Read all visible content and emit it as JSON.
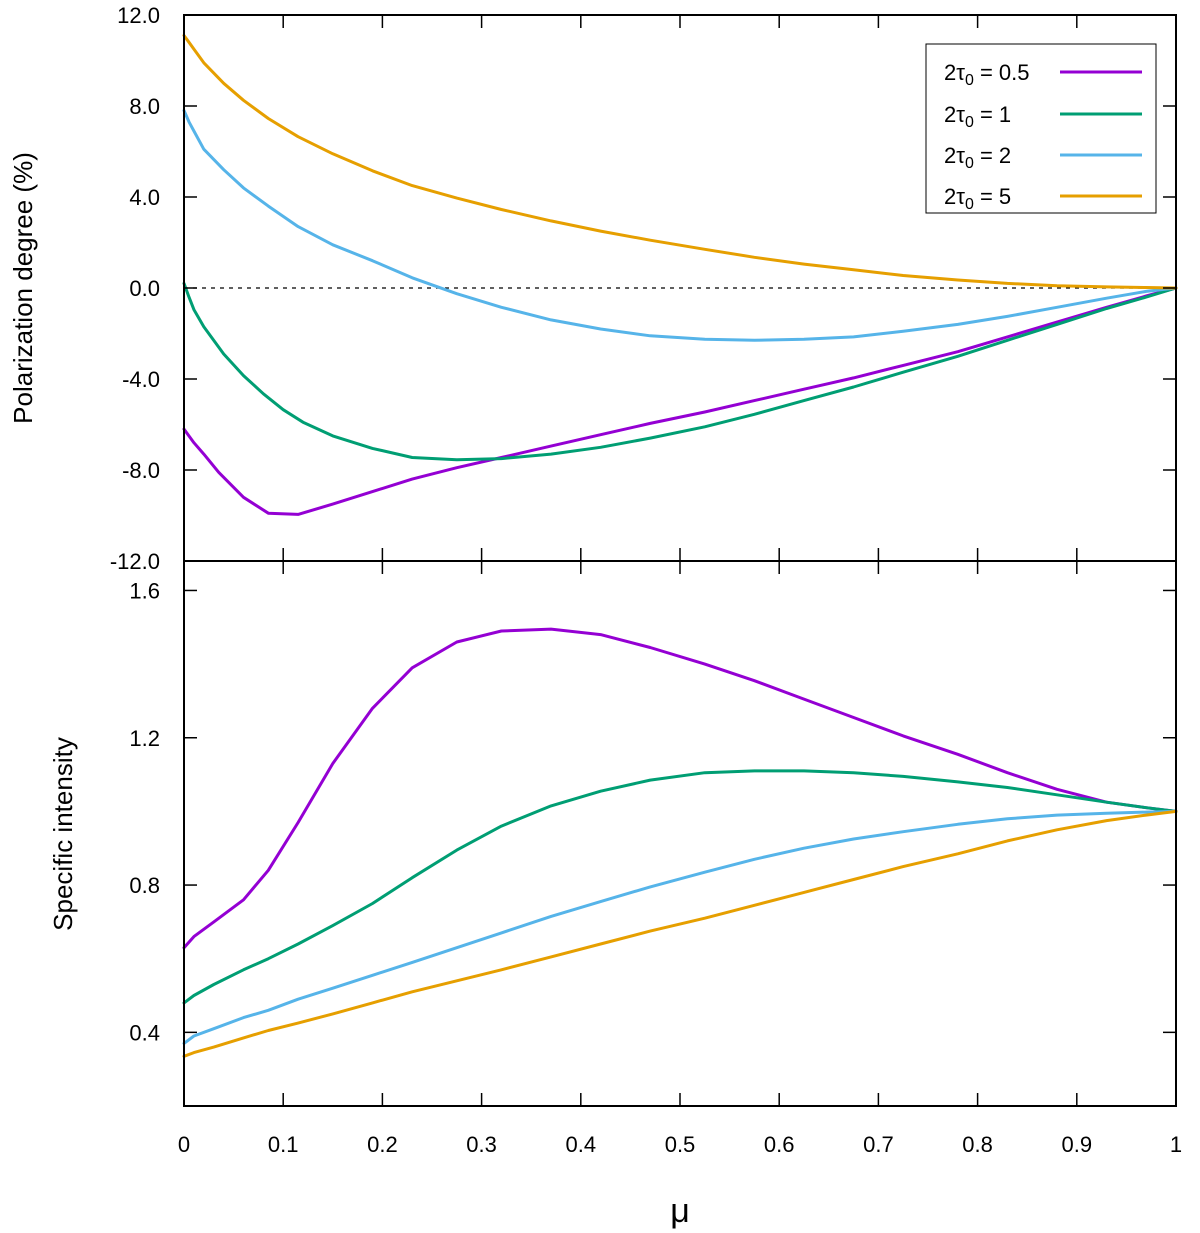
{
  "chart_data": [
    {
      "type": "line",
      "panel": "top",
      "ylabel": "Polarization degree (%)",
      "xlim": [
        0,
        1
      ],
      "ylim": [
        -12,
        12
      ],
      "yticks": [
        -12,
        -8,
        -4,
        0,
        4,
        8,
        12
      ],
      "ytick_labels": [
        "-12.0",
        "-8.0",
        "-4.0",
        "0.0",
        "4.0",
        "8.0",
        "12.0"
      ],
      "zero_line": true,
      "series": [
        {
          "name": "2τ0 = 0.5",
          "color": "#9400d3",
          "x": [
            0,
            0.01,
            0.02,
            0.035,
            0.06,
            0.085,
            0.115,
            0.15,
            0.19,
            0.23,
            0.275,
            0.32,
            0.37,
            0.42,
            0.47,
            0.525,
            0.575,
            0.625,
            0.675,
            0.725,
            0.78,
            0.83,
            0.88,
            0.93,
            0.97,
            1.0
          ],
          "y": [
            -6.2,
            -6.8,
            -7.3,
            -8.1,
            -9.2,
            -9.9,
            -9.95,
            -9.5,
            -8.95,
            -8.4,
            -7.9,
            -7.45,
            -6.95,
            -6.45,
            -5.95,
            -5.45,
            -4.95,
            -4.45,
            -3.95,
            -3.4,
            -2.8,
            -2.15,
            -1.5,
            -0.85,
            -0.35,
            0.0
          ]
        },
        {
          "name": "2τ0 = 1",
          "color": "#009e73",
          "x": [
            0,
            0.005,
            0.01,
            0.02,
            0.04,
            0.06,
            0.08,
            0.1,
            0.12,
            0.15,
            0.19,
            0.23,
            0.275,
            0.32,
            0.37,
            0.42,
            0.47,
            0.525,
            0.575,
            0.625,
            0.675,
            0.725,
            0.78,
            0.83,
            0.88,
            0.93,
            0.97,
            1.0
          ],
          "y": [
            0.2,
            -0.4,
            -0.95,
            -1.7,
            -2.9,
            -3.85,
            -4.65,
            -5.35,
            -5.9,
            -6.5,
            -7.05,
            -7.45,
            -7.55,
            -7.5,
            -7.3,
            -7.0,
            -6.6,
            -6.1,
            -5.55,
            -4.95,
            -4.35,
            -3.7,
            -3.0,
            -2.3,
            -1.6,
            -0.9,
            -0.4,
            0.0
          ]
        },
        {
          "name": "2τ0 = 2",
          "color": "#56b4e9",
          "x": [
            0,
            0.005,
            0.01,
            0.02,
            0.04,
            0.06,
            0.085,
            0.115,
            0.15,
            0.19,
            0.23,
            0.275,
            0.32,
            0.37,
            0.42,
            0.47,
            0.525,
            0.575,
            0.625,
            0.675,
            0.725,
            0.78,
            0.83,
            0.88,
            0.93,
            0.97,
            1.0
          ],
          "y": [
            7.8,
            7.3,
            6.9,
            6.1,
            5.2,
            4.4,
            3.6,
            2.7,
            1.9,
            1.2,
            0.45,
            -0.25,
            -0.85,
            -1.4,
            -1.8,
            -2.1,
            -2.25,
            -2.3,
            -2.25,
            -2.15,
            -1.9,
            -1.6,
            -1.25,
            -0.85,
            -0.45,
            -0.15,
            0.0
          ]
        },
        {
          "name": "2τ0 = 5",
          "color": "#e69f00",
          "x": [
            0,
            0.005,
            0.01,
            0.02,
            0.04,
            0.06,
            0.085,
            0.115,
            0.15,
            0.19,
            0.23,
            0.275,
            0.32,
            0.37,
            0.42,
            0.47,
            0.525,
            0.575,
            0.625,
            0.675,
            0.725,
            0.78,
            0.83,
            0.88,
            0.93,
            0.97,
            1.0
          ],
          "y": [
            11.1,
            10.8,
            10.5,
            9.9,
            9.0,
            8.25,
            7.45,
            6.65,
            5.9,
            5.15,
            4.5,
            3.95,
            3.45,
            2.95,
            2.5,
            2.1,
            1.7,
            1.35,
            1.05,
            0.8,
            0.55,
            0.35,
            0.2,
            0.1,
            0.05,
            0.02,
            0.0
          ]
        }
      ],
      "legend": {
        "position": "top-right",
        "entries": [
          {
            "label_base": "2τ",
            "label_sub": "0",
            "label_rest": " = 0.5",
            "color": "#9400d3"
          },
          {
            "label_base": "2τ",
            "label_sub": "0",
            "label_rest": " = 1",
            "color": "#009e73"
          },
          {
            "label_base": "2τ",
            "label_sub": "0",
            "label_rest": " = 2",
            "color": "#56b4e9"
          },
          {
            "label_base": "2τ",
            "label_sub": "0",
            "label_rest": " = 5",
            "color": "#e69f00"
          }
        ]
      }
    },
    {
      "type": "line",
      "panel": "bottom",
      "ylabel": "Specific intensity",
      "xlabel": "μ",
      "xlim": [
        0,
        1
      ],
      "ylim": [
        0.2,
        1.68
      ],
      "yticks": [
        0.4,
        0.8,
        1.2,
        1.6
      ],
      "ytick_labels": [
        "0.4",
        "0.8",
        "1.2",
        "1.6"
      ],
      "xticks": [
        0,
        0.1,
        0.2,
        0.3,
        0.4,
        0.5,
        0.6,
        0.7,
        0.8,
        0.9,
        1
      ],
      "xtick_labels": [
        "0",
        "0.1",
        "0.2",
        "0.3",
        "0.4",
        "0.5",
        "0.6",
        "0.7",
        "0.8",
        "0.9",
        "1"
      ],
      "series": [
        {
          "name": "2τ0 = 0.5",
          "color": "#9400d3",
          "x": [
            0,
            0.01,
            0.03,
            0.06,
            0.085,
            0.115,
            0.15,
            0.19,
            0.23,
            0.275,
            0.32,
            0.37,
            0.42,
            0.47,
            0.525,
            0.575,
            0.625,
            0.675,
            0.725,
            0.78,
            0.83,
            0.88,
            0.93,
            0.97,
            1.0
          ],
          "y": [
            0.63,
            0.66,
            0.7,
            0.76,
            0.84,
            0.97,
            1.13,
            1.28,
            1.39,
            1.46,
            1.49,
            1.495,
            1.48,
            1.445,
            1.4,
            1.355,
            1.305,
            1.255,
            1.205,
            1.155,
            1.105,
            1.06,
            1.025,
            1.01,
            1.0
          ]
        },
        {
          "name": "2τ0 = 1",
          "color": "#009e73",
          "x": [
            0,
            0.01,
            0.03,
            0.06,
            0.085,
            0.115,
            0.15,
            0.19,
            0.23,
            0.275,
            0.32,
            0.37,
            0.42,
            0.47,
            0.525,
            0.575,
            0.625,
            0.675,
            0.725,
            0.78,
            0.83,
            0.88,
            0.93,
            0.97,
            1.0
          ],
          "y": [
            0.48,
            0.5,
            0.53,
            0.57,
            0.6,
            0.64,
            0.69,
            0.75,
            0.82,
            0.895,
            0.96,
            1.015,
            1.055,
            1.085,
            1.105,
            1.11,
            1.11,
            1.105,
            1.095,
            1.08,
            1.065,
            1.045,
            1.025,
            1.01,
            1.0
          ]
        },
        {
          "name": "2τ0 = 2",
          "color": "#56b4e9",
          "x": [
            0,
            0.01,
            0.03,
            0.06,
            0.085,
            0.115,
            0.15,
            0.19,
            0.23,
            0.275,
            0.32,
            0.37,
            0.42,
            0.47,
            0.525,
            0.575,
            0.625,
            0.675,
            0.725,
            0.78,
            0.83,
            0.88,
            0.93,
            0.97,
            1.0
          ],
          "y": [
            0.37,
            0.39,
            0.41,
            0.44,
            0.46,
            0.49,
            0.52,
            0.555,
            0.59,
            0.63,
            0.67,
            0.715,
            0.755,
            0.795,
            0.835,
            0.87,
            0.9,
            0.925,
            0.945,
            0.965,
            0.98,
            0.99,
            0.995,
            0.998,
            1.0
          ]
        },
        {
          "name": "2τ0 = 5",
          "color": "#e69f00",
          "x": [
            0,
            0.01,
            0.03,
            0.06,
            0.085,
            0.115,
            0.15,
            0.19,
            0.23,
            0.275,
            0.32,
            0.37,
            0.42,
            0.47,
            0.525,
            0.575,
            0.625,
            0.675,
            0.725,
            0.78,
            0.83,
            0.88,
            0.93,
            0.97,
            1.0
          ],
          "y": [
            0.335,
            0.345,
            0.36,
            0.385,
            0.405,
            0.425,
            0.45,
            0.48,
            0.51,
            0.54,
            0.57,
            0.605,
            0.64,
            0.675,
            0.71,
            0.745,
            0.78,
            0.815,
            0.85,
            0.885,
            0.92,
            0.95,
            0.975,
            0.99,
            1.0
          ]
        }
      ]
    }
  ]
}
